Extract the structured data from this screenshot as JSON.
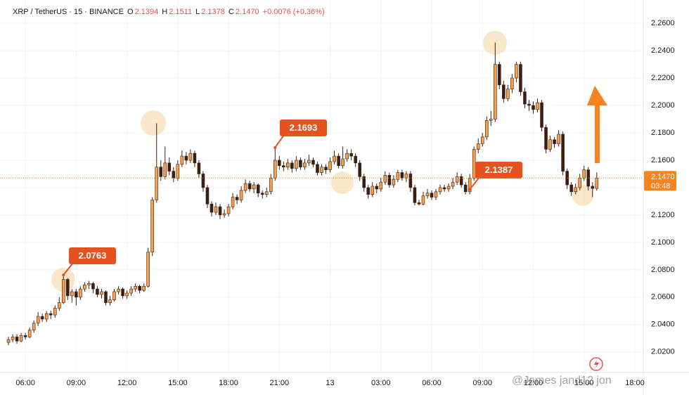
{
  "chart_data": {
    "type": "candlestick",
    "title": "XRP / TetherUS · 15 · BINANCE",
    "ohlc_fields": [
      [
        "O",
        "2.1394"
      ],
      [
        "H",
        "2.1511"
      ],
      [
        "L",
        "2.1378"
      ],
      [
        "C",
        "2.1470"
      ]
    ],
    "change": "+0.0076 (+0.36%)",
    "up_color": "#f6a04d",
    "down_color": "#3b1f12",
    "wick_color": "#3b1f12",
    "open": [
      2.027,
      2.029,
      2.031,
      2.028,
      2.032,
      2.031,
      2.036,
      2.041,
      2.046,
      2.044,
      2.048,
      2.047,
      2.052,
      2.056,
      2.073,
      2.061,
      2.064,
      2.06,
      2.066,
      2.069,
      2.07,
      2.066,
      2.062,
      2.064,
      2.056,
      2.058,
      2.064,
      2.066,
      2.061,
      2.063,
      2.066,
      2.068,
      2.065,
      2.068,
      2.093,
      2.131,
      2.155,
      2.148,
      2.158,
      2.152,
      2.147,
      2.157,
      2.163,
      2.16,
      2.165,
      2.158,
      2.15,
      2.14,
      2.128,
      2.122,
      2.126,
      2.12,
      2.121,
      2.126,
      2.133,
      2.131,
      2.138,
      2.143,
      2.139,
      2.142,
      2.136,
      2.135,
      2.137,
      2.147,
      2.16,
      2.156,
      2.155,
      2.158,
      2.154,
      2.16,
      2.155,
      2.158,
      2.16,
      2.157,
      2.151,
      2.155,
      2.153,
      2.159,
      2.163,
      2.156,
      2.161,
      2.165,
      2.163,
      2.158,
      2.148,
      2.14,
      2.135,
      2.141,
      2.139,
      2.144,
      2.149,
      2.142,
      2.146,
      2.151,
      2.147,
      2.15,
      2.14,
      2.129,
      2.128,
      2.134,
      2.136,
      2.133,
      2.137,
      2.14,
      2.139,
      2.141,
      2.144,
      2.148,
      2.142,
      2.137,
      2.147,
      2.168,
      2.172,
      2.177,
      2.189,
      2.19,
      2.23,
      2.215,
      2.205,
      2.212,
      2.22,
      2.23,
      2.21,
      2.201,
      2.2,
      2.197,
      2.202,
      2.184,
      2.168,
      2.175,
      2.172,
      2.179,
      2.152,
      2.142,
      2.137,
      2.14,
      2.147,
      2.153,
      2.141,
      2.1394
    ],
    "high": [
      2.031,
      2.033,
      2.033,
      2.034,
      2.034,
      2.038,
      2.043,
      2.049,
      2.048,
      2.05,
      2.05,
      2.054,
      2.06,
      2.0763,
      2.074,
      2.066,
      2.066,
      2.068,
      2.071,
      2.072,
      2.071,
      2.068,
      2.066,
      2.065,
      2.061,
      2.066,
      2.068,
      2.067,
      2.065,
      2.068,
      2.07,
      2.069,
      2.07,
      2.096,
      2.133,
      2.187,
      2.16,
      2.17,
      2.162,
      2.155,
      2.16,
      2.167,
      2.166,
      2.168,
      2.167,
      2.16,
      2.152,
      2.142,
      2.13,
      2.129,
      2.128,
      2.124,
      2.128,
      2.136,
      2.135,
      2.141,
      2.146,
      2.145,
      2.144,
      2.143,
      2.138,
      2.14,
      2.15,
      2.1693,
      2.163,
      2.159,
      2.161,
      2.16,
      2.163,
      2.162,
      2.161,
      2.164,
      2.162,
      2.159,
      2.157,
      2.157,
      2.162,
      2.167,
      2.165,
      2.17,
      2.168,
      2.168,
      2.165,
      2.16,
      2.15,
      2.142,
      2.144,
      2.143,
      2.147,
      2.152,
      2.151,
      2.149,
      2.153,
      2.153,
      2.152,
      2.152,
      2.142,
      2.131,
      2.137,
      2.139,
      2.138,
      2.139,
      2.142,
      2.142,
      2.143,
      2.147,
      2.151,
      2.15,
      2.144,
      2.15,
      2.17,
      2.176,
      2.18,
      2.192,
      2.196,
      2.246,
      2.232,
      2.218,
      2.215,
      2.223,
      2.232,
      2.232,
      2.213,
      2.204,
      2.203,
      2.205,
      2.204,
      2.186,
      2.178,
      2.177,
      2.182,
      2.181,
      2.154,
      2.144,
      2.143,
      2.15,
      2.156,
      2.155,
      2.144,
      2.1511
    ],
    "low": [
      2.025,
      2.027,
      2.026,
      2.027,
      2.029,
      2.03,
      2.034,
      2.039,
      2.042,
      2.042,
      2.044,
      2.045,
      2.05,
      2.055,
      2.058,
      2.056,
      2.054,
      2.058,
      2.064,
      2.066,
      2.063,
      2.06,
      2.059,
      2.054,
      2.054,
      2.057,
      2.062,
      2.059,
      2.059,
      2.061,
      2.064,
      2.063,
      2.064,
      2.067,
      2.09,
      2.129,
      2.145,
      2.146,
      2.149,
      2.144,
      2.145,
      2.155,
      2.157,
      2.158,
      2.155,
      2.147,
      2.137,
      2.125,
      2.119,
      2.12,
      2.117,
      2.118,
      2.119,
      2.124,
      2.128,
      2.129,
      2.136,
      2.137,
      2.136,
      2.133,
      2.132,
      2.133,
      2.135,
      2.145,
      2.153,
      2.152,
      2.153,
      2.151,
      2.152,
      2.153,
      2.153,
      2.156,
      2.155,
      2.149,
      2.149,
      2.15,
      2.151,
      2.157,
      2.154,
      2.154,
      2.159,
      2.16,
      2.155,
      2.145,
      2.137,
      2.132,
      2.133,
      2.136,
      2.137,
      2.142,
      2.14,
      2.14,
      2.144,
      2.145,
      2.144,
      2.137,
      2.127,
      2.127,
      2.127,
      2.132,
      2.131,
      2.131,
      2.135,
      2.137,
      2.137,
      2.139,
      2.142,
      2.14,
      2.135,
      2.135,
      2.145,
      2.165,
      2.17,
      2.175,
      2.185,
      2.188,
      2.212,
      2.202,
      2.203,
      2.209,
      2.217,
      2.207,
      2.198,
      2.196,
      2.194,
      2.195,
      2.181,
      2.165,
      2.166,
      2.169,
      2.17,
      2.149,
      2.139,
      2.134,
      2.135,
      2.138,
      2.145,
      2.138,
      2.133,
      2.1378
    ],
    "close": [
      2.029,
      2.031,
      2.028,
      2.032,
      2.031,
      2.036,
      2.041,
      2.046,
      2.044,
      2.048,
      2.047,
      2.052,
      2.056,
      2.073,
      2.061,
      2.064,
      2.06,
      2.066,
      2.069,
      2.07,
      2.066,
      2.062,
      2.064,
      2.056,
      2.058,
      2.064,
      2.066,
      2.061,
      2.063,
      2.066,
      2.068,
      2.065,
      2.068,
      2.093,
      2.131,
      2.155,
      2.148,
      2.158,
      2.152,
      2.147,
      2.157,
      2.163,
      2.16,
      2.165,
      2.158,
      2.15,
      2.14,
      2.128,
      2.122,
      2.126,
      2.12,
      2.121,
      2.126,
      2.133,
      2.131,
      2.138,
      2.143,
      2.139,
      2.142,
      2.136,
      2.135,
      2.137,
      2.147,
      2.16,
      2.156,
      2.155,
      2.158,
      2.154,
      2.16,
      2.155,
      2.158,
      2.16,
      2.157,
      2.151,
      2.155,
      2.153,
      2.159,
      2.163,
      2.156,
      2.161,
      2.165,
      2.163,
      2.158,
      2.148,
      2.14,
      2.135,
      2.141,
      2.139,
      2.144,
      2.149,
      2.142,
      2.146,
      2.151,
      2.147,
      2.15,
      2.14,
      2.129,
      2.128,
      2.134,
      2.136,
      2.133,
      2.137,
      2.14,
      2.139,
      2.141,
      2.144,
      2.148,
      2.142,
      2.137,
      2.147,
      2.168,
      2.172,
      2.177,
      2.189,
      2.19,
      2.23,
      2.215,
      2.205,
      2.212,
      2.22,
      2.23,
      2.21,
      2.201,
      2.2,
      2.197,
      2.202,
      2.184,
      2.168,
      2.175,
      2.172,
      2.179,
      2.152,
      2.142,
      2.137,
      2.14,
      2.147,
      2.153,
      2.141,
      2.1394,
      2.147
    ],
    "xlim": [
      -2,
      150
    ],
    "xticks": [
      {
        "value": 4,
        "label": "06:00"
      },
      {
        "value": 16,
        "label": "09:00"
      },
      {
        "value": 28,
        "label": "12:00"
      },
      {
        "value": 40,
        "label": "15:00"
      },
      {
        "value": 52,
        "label": "18:00"
      },
      {
        "value": 64,
        "label": "21:00"
      },
      {
        "value": 76,
        "label": "13"
      },
      {
        "value": 88,
        "label": "03:00"
      },
      {
        "value": 100,
        "label": "06:00"
      },
      {
        "value": 112,
        "label": "09:00"
      },
      {
        "value": 124,
        "label": "12:00"
      },
      {
        "value": 136,
        "label": "15:00"
      },
      {
        "value": 148,
        "label": "18:00"
      }
    ],
    "ylim": [
      2.005,
      2.277
    ],
    "yticks": [
      {
        "value": 2.02,
        "label": "2.0200"
      },
      {
        "value": 2.04,
        "label": "2.0400"
      },
      {
        "value": 2.06,
        "label": "2.0600"
      },
      {
        "value": 2.08,
        "label": "2.0800"
      },
      {
        "value": 2.1,
        "label": "2.1000"
      },
      {
        "value": 2.12,
        "label": "2.1200"
      },
      {
        "value": 2.14,
        "label": "2.1400"
      },
      {
        "value": 2.16,
        "label": "2.1600"
      },
      {
        "value": 2.18,
        "label": "2.1800"
      },
      {
        "value": 2.2,
        "label": "2.2000"
      },
      {
        "value": 2.22,
        "label": "2.2200"
      },
      {
        "value": 2.24,
        "label": "2.2400"
      },
      {
        "value": 2.26,
        "label": "2.2600"
      }
    ],
    "grid": true,
    "last_price": {
      "value": 2.147,
      "label": "2.1470"
    },
    "countdown": "03:48",
    "price_tag_color": "#f5841f",
    "annotations": [
      {
        "value": 2.0763,
        "label": "2.0763"
      },
      {
        "value": 2.1693,
        "label": "2.1693"
      },
      {
        "value": 2.1387,
        "label": "2.1387"
      }
    ],
    "annotation_color": "#e4521f",
    "watermark": "@James jand12 jon"
  }
}
